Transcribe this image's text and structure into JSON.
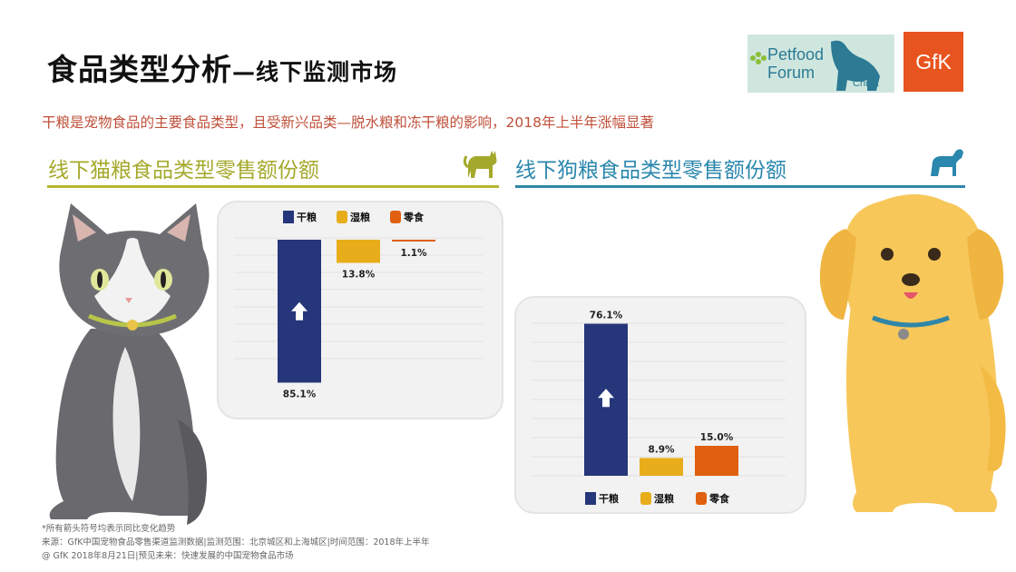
{
  "header": {
    "title_main": "食品类型分析",
    "title_sub": "—线下监测市场",
    "subtitle": "干粮是宠物食品的主要食品类型，且受新兴品类—脱水粮和冻干粮的影响，2018年上半年涨幅显著"
  },
  "logos": {
    "petfood_line1": "Petfood",
    "petfood_line2": "Forum",
    "petfood_line3": "China",
    "gfk": "GfK"
  },
  "sections": {
    "cat_title": "线下猫粮食品类型零售额份额",
    "dog_title": "线下狗粮食品类型零售额份额"
  },
  "colors": {
    "dry": "#25367a",
    "wet": "#e8ad1b",
    "snack": "#e06010",
    "cat_accent": "#a5a92b",
    "dog_accent": "#2a87ad",
    "subtitle": "#c0503a"
  },
  "chart_data": [
    {
      "type": "bar",
      "title": "线下猫粮食品类型零售额份额",
      "categories": [
        "干粮",
        "湿粮",
        "零食"
      ],
      "values": [
        85.1,
        13.8,
        1.1
      ],
      "value_labels": [
        "85.1%",
        "13.8%",
        "1.1%"
      ],
      "unit": "%",
      "trend": [
        "up",
        "",
        ""
      ],
      "legend_position": "top",
      "ylim": [
        0,
        100
      ]
    },
    {
      "type": "bar",
      "title": "线下狗粮食品类型零售额份额",
      "categories": [
        "干粮",
        "湿粮",
        "零食"
      ],
      "values": [
        76.1,
        8.9,
        15.0
      ],
      "value_labels": [
        "76.1%",
        "8.9%",
        "15.0%"
      ],
      "unit": "%",
      "trend": [
        "up",
        "",
        ""
      ],
      "legend_position": "bottom",
      "ylim": [
        0,
        100
      ]
    }
  ],
  "footnotes": {
    "line1": "*所有箭头符号均表示同比变化趋势",
    "line2": "来源：GfK中国宠物食品零售渠道监测数据|监测范围：北京城区和上海城区|时间范围：2018年上半年",
    "line3": "@ GfK 2018年8月21日|预见未来：快速发展的中国宠物食品市场"
  }
}
